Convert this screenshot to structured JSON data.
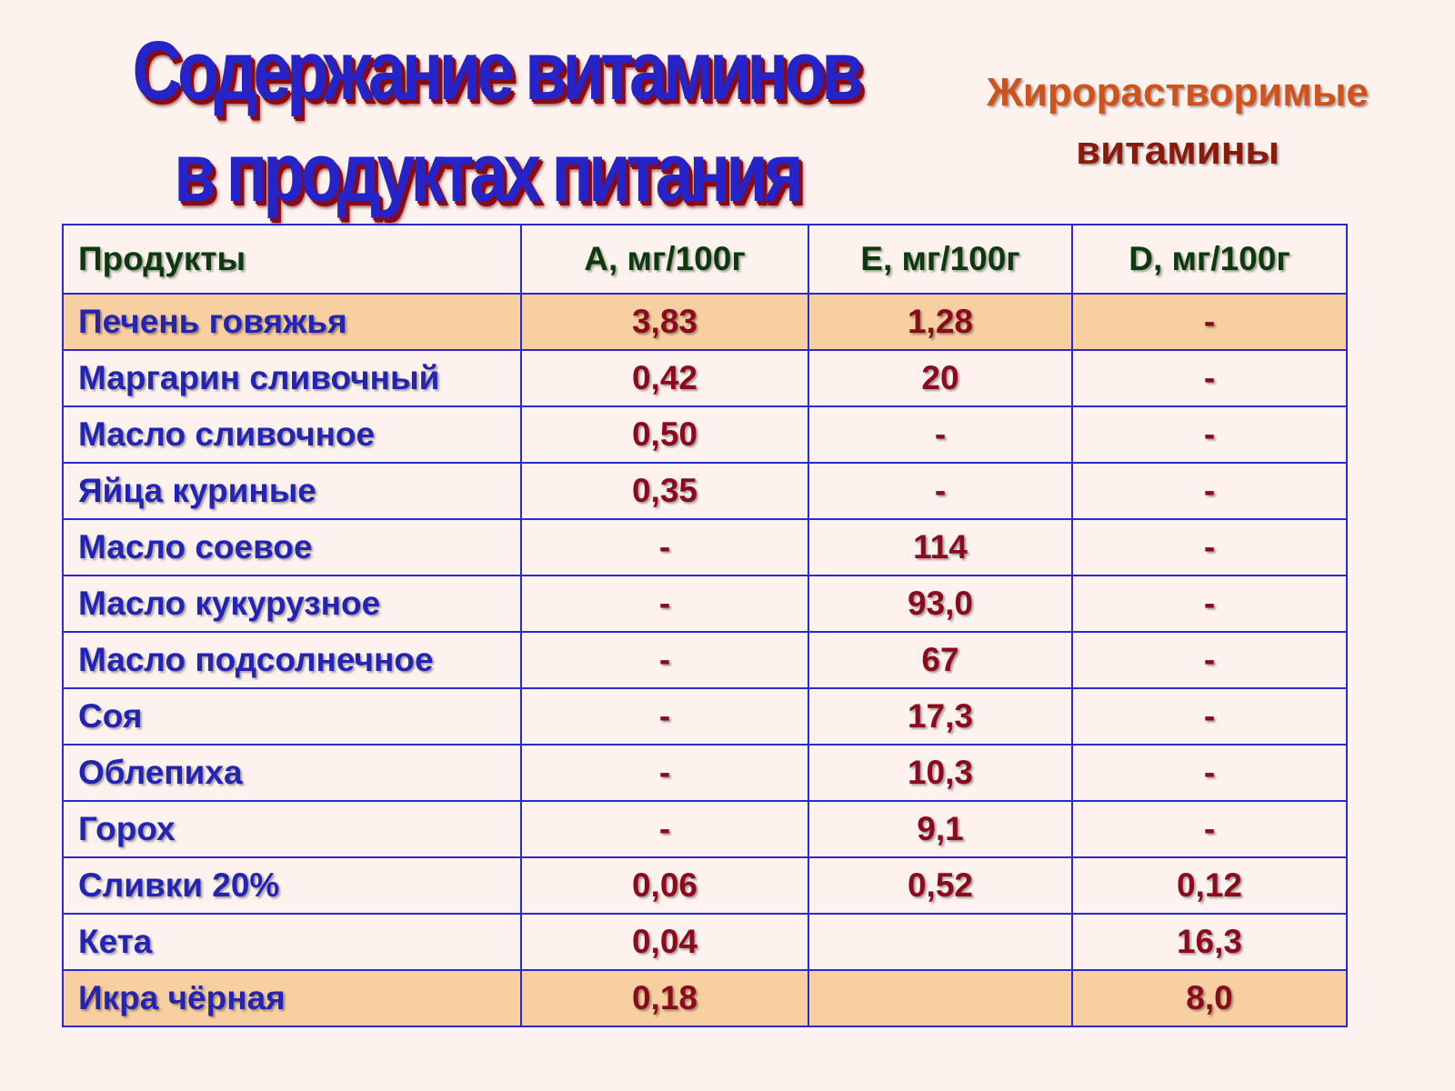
{
  "title": {
    "line1": "Содержание витаминов",
    "line2": "в продуктах питания"
  },
  "subtitle": {
    "line1": "Жирорастворимые",
    "line2": "витамины"
  },
  "table": {
    "headers": [
      "Продукты",
      "A, мг/100г",
      "E, мг/100г",
      "D, мг/100г"
    ],
    "rows": [
      [
        "Печень говяжья",
        "3,83",
        "1,28",
        "-"
      ],
      [
        "Маргарин сливочный",
        "0,42",
        "20",
        "-"
      ],
      [
        "Масло сливочное",
        "0,50",
        "-",
        "-"
      ],
      [
        "Яйца куриные",
        "0,35",
        "-",
        "-"
      ],
      [
        "Масло соевое",
        "-",
        "114",
        "-"
      ],
      [
        "Масло кукурузное",
        "-",
        "93,0",
        "-"
      ],
      [
        "Масло подсолнечное",
        "-",
        "67",
        "-"
      ],
      [
        "Соя",
        "-",
        "17,3",
        "-"
      ],
      [
        "Облепиха",
        "-",
        "10,3",
        "-"
      ],
      [
        "Горох",
        "-",
        "9,1",
        "-"
      ],
      [
        "Сливки 20%",
        "0,06",
        "0,52",
        "0,12"
      ],
      [
        "Кета",
        "0,04",
        "",
        "16,3"
      ],
      [
        "Икра чёрная",
        "0,18",
        "",
        "8,0"
      ]
    ]
  },
  "colors": {
    "title": "#2424c8",
    "title_shadow": "#8b0a12",
    "highlight_row": "#f8cfa0",
    "border": "#2a2ad0"
  }
}
